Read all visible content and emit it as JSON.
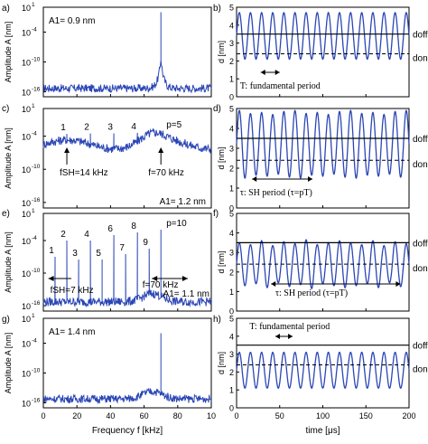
{
  "colors": {
    "trace": "#2b46b5",
    "axis": "#000000",
    "bg": "#ffffff"
  },
  "chart_data": [
    {
      "panel": "a)",
      "type": "line",
      "ylabel": "Amplitude A [nm]",
      "yscale": "log",
      "ylim_exp": [
        -17,
        1
      ],
      "yticks": [
        "10",
        "10",
        "10",
        "10"
      ],
      "ytick_exps": [
        "1",
        "-4",
        "-10",
        "-16"
      ],
      "xlim": [
        0,
        10
      ],
      "note": "A1= 0.9 nm",
      "spectrum": {
        "baseline_exp": -15.3,
        "peaks": [
          {
            "x": 7.0,
            "exp": 0.0
          }
        ]
      }
    },
    {
      "panel": "c)",
      "type": "line",
      "ylabel": "Amplitude A [nm]",
      "yscale": "log",
      "ylim_exp": [
        -17,
        1
      ],
      "yticks": [
        "10",
        "10",
        "10",
        "10"
      ],
      "ytick_exps": [
        "1",
        "-4",
        "-10",
        "-16"
      ],
      "xlim": [
        0,
        10
      ],
      "note": "A1= 1.2 nm",
      "peak_labels": [
        "1",
        "2",
        "3",
        "4",
        "p=5"
      ],
      "annotations": [
        "fSH=14 kHz",
        "f=70 kHz"
      ],
      "spectrum": {
        "baseline_exp": -5.5,
        "peaks": [
          {
            "x": 1.4,
            "exp": -3.6
          },
          {
            "x": 2.8,
            "exp": -3.5
          },
          {
            "x": 4.2,
            "exp": -3.5
          },
          {
            "x": 5.6,
            "exp": -3.4
          },
          {
            "x": 7.0,
            "exp": -3.1
          }
        ]
      }
    },
    {
      "panel": "e)",
      "type": "line",
      "ylabel": "Amplitude A [nm]",
      "yscale": "log",
      "ylim_exp": [
        -17,
        1
      ],
      "yticks": [
        "10",
        "10",
        "10",
        "10"
      ],
      "ytick_exps": [
        "1",
        "-4",
        "-10",
        "-16"
      ],
      "xlim": [
        0,
        10
      ],
      "note": "A1= 1.1 nm",
      "peak_labels": [
        "1",
        "2",
        "3",
        "4",
        "5",
        "6",
        "7",
        "8",
        "9",
        "p=10"
      ],
      "annotations": [
        "fSH=7 kHz",
        "f=70 kHz"
      ],
      "spectrum": {
        "baseline_exp": -15.3,
        "peaks": [
          {
            "x": 0.7,
            "exp": -7.0
          },
          {
            "x": 1.4,
            "exp": -4.0
          },
          {
            "x": 2.1,
            "exp": -7.5
          },
          {
            "x": 2.8,
            "exp": -4.0
          },
          {
            "x": 3.5,
            "exp": -7.5
          },
          {
            "x": 4.2,
            "exp": -3.0
          },
          {
            "x": 4.9,
            "exp": -6.5
          },
          {
            "x": 5.6,
            "exp": -2.5
          },
          {
            "x": 6.3,
            "exp": -5.5
          },
          {
            "x": 7.0,
            "exp": -2.0
          }
        ]
      }
    },
    {
      "panel": "g)",
      "type": "line",
      "ylabel": "Amplitude A [nm]",
      "yscale": "log",
      "ylim_exp": [
        -17,
        1
      ],
      "yticks": [
        "10",
        "10",
        "10",
        "10"
      ],
      "ytick_exps": [
        "1",
        "-4",
        "-10",
        "-16"
      ],
      "xlim": [
        0,
        10
      ],
      "xticks": [
        "0",
        "20",
        "40",
        "60",
        "80",
        "10"
      ],
      "xlabel": "Frequency f [kHz]",
      "note": "A1= 1.4 nm",
      "spectrum": {
        "baseline_exp": -15.2,
        "peaks": [
          {
            "x": 7.0,
            "exp": -2.0
          }
        ]
      }
    },
    {
      "panel": "b)",
      "type": "line",
      "ylabel": "d [nm]",
      "ylim": [
        0,
        5
      ],
      "yticks": [
        "0",
        "1",
        "2",
        "3",
        "4",
        "5"
      ],
      "xlim": [
        0,
        200
      ],
      "levels": {
        "doff": 3.5,
        "don": 2.4
      },
      "level_labels": [
        "doff",
        "don"
      ],
      "period_label": "T: fundamental period",
      "wave": {
        "center": 3.4,
        "amps": [
          1.3
        ],
        "subharmonic_p": 1
      }
    },
    {
      "panel": "d)",
      "type": "line",
      "ylabel": "d [nm]",
      "ylim": [
        0,
        5
      ],
      "yticks": [
        "0",
        "1",
        "2",
        "3",
        "4",
        "5"
      ],
      "xlim": [
        0,
        200
      ],
      "levels": {
        "doff": 3.5,
        "don": 2.4
      },
      "level_labels": [
        "doff",
        "don"
      ],
      "period_label": "τ: SH period (τ=pT)",
      "wave": {
        "center": 3.2,
        "amps": [
          1.7,
          1.55,
          1.6,
          1.5,
          1.65
        ],
        "subharmonic_p": 5
      }
    },
    {
      "panel": "f)",
      "type": "line",
      "ylabel": "d [nm]",
      "ylim": [
        0,
        5
      ],
      "yticks": [
        "0",
        "1",
        "2",
        "3",
        "4",
        "5"
      ],
      "xlim": [
        0,
        200
      ],
      "levels": {
        "doff": 3.5,
        "don": 2.4
      },
      "level_labels": [
        "doff",
        "don"
      ],
      "period_label": "τ: SH period (τ=pT)",
      "wave": {
        "center": 2.4,
        "amps": [
          1.1,
          1.0,
          1.2,
          0.95,
          1.15,
          1.05,
          1.25,
          1.0,
          1.1,
          1.2
        ],
        "subharmonic_p": 10
      }
    },
    {
      "panel": "h)",
      "type": "line",
      "ylabel": "d [nm]",
      "ylim": [
        0,
        5
      ],
      "yticks": [
        "0",
        "1",
        "2",
        "3",
        "4",
        "5"
      ],
      "xlim": [
        0,
        200
      ],
      "xticks": [
        "0",
        "50",
        "100",
        "150",
        "200"
      ],
      "xlabel": "time [μs]",
      "levels": {
        "doff": 3.5,
        "don": 2.4
      },
      "level_labels": [
        "doff",
        "don"
      ],
      "period_label": "T: fundamental period",
      "wave": {
        "center": 2.1,
        "amps": [
          1.0
        ],
        "subharmonic_p": 1
      }
    }
  ]
}
